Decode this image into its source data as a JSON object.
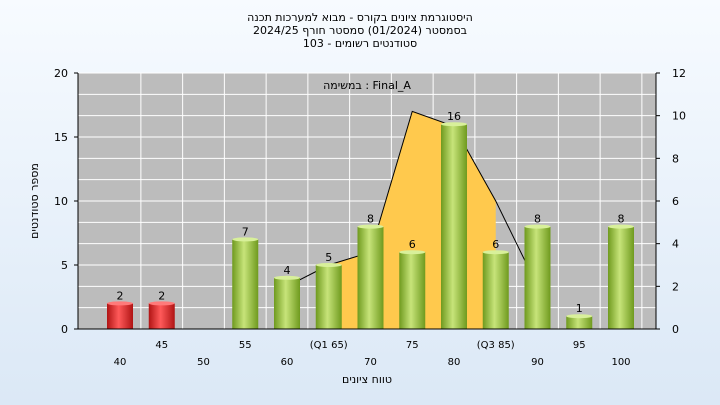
{
  "title_lines": [
    "היסטוגרמת ציונים בקורס - מבוא למערכות תכנה",
    "בסמסטר  (01/2024)  סמסטר חורף 2024/25",
    "סטודנטים רשומים - 103"
  ],
  "colors": {
    "plot_bg": "#bcbcbc",
    "area": "#ffc94d",
    "bar_green": "#9cc640",
    "bar_red": "#e02a2a",
    "line": "#000000"
  },
  "chart_data": {
    "type": "bar",
    "title": "היסטוגרמת ציונים בקורס - מבוא למערכות תכנה",
    "xlabel": "טווח ציונים",
    "ylabel": "מספר סטודנטים",
    "ylim": [
      0,
      20
    ],
    "y2lim": [
      0,
      12
    ],
    "yticks": [
      0,
      5,
      10,
      15,
      20
    ],
    "y2ticks": [
      0,
      2,
      4,
      6,
      8,
      10,
      12
    ],
    "annotation": "במשימה : Final_A",
    "grid": true,
    "categories": [
      "40",
      "45",
      "50",
      "55",
      "60",
      "(Q1 65)",
      "70",
      "75",
      "80",
      "(Q3 85)",
      "90",
      "95",
      "100"
    ],
    "values": [
      2,
      2,
      0,
      7,
      4,
      5,
      8,
      6,
      16,
      6,
      8,
      1,
      8
    ],
    "bar_colors": [
      "red",
      "red",
      "",
      "green",
      "green",
      "green",
      "green",
      "green",
      "green",
      "green",
      "green",
      "green",
      "green"
    ],
    "area_series": {
      "x": [
        65,
        65,
        70,
        75,
        80,
        85,
        85
      ],
      "y": [
        0,
        3,
        3.6,
        10.2,
        9.5,
        6.0,
        0
      ]
    },
    "line_series": {
      "x": [
        60,
        65,
        70,
        75,
        80,
        85,
        90
      ],
      "y": [
        2,
        3,
        3.6,
        10.2,
        9.5,
        6.0,
        2.0
      ]
    }
  }
}
